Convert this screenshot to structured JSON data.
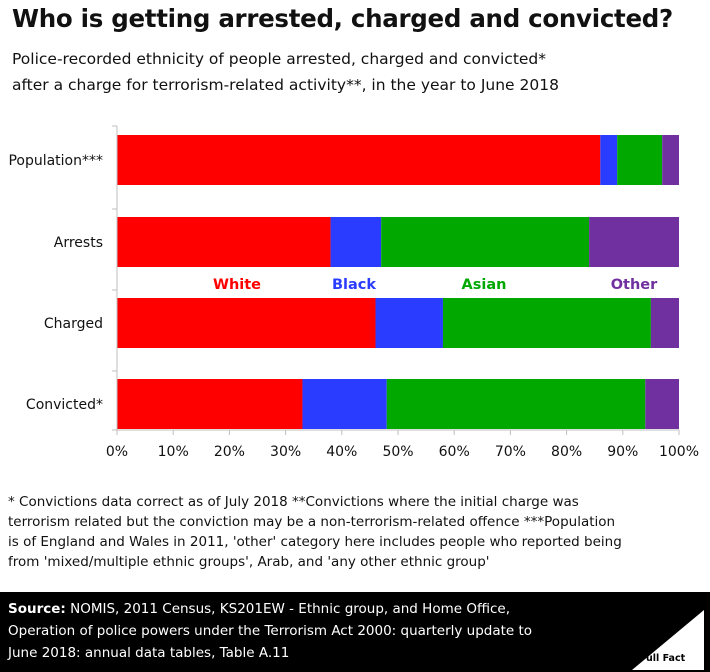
{
  "header": {
    "title": "Who is getting arrested, charged and convicted?",
    "subtitle_line1": "Police-recorded ethnicity of people arrested, charged and convicted*",
    "subtitle_line2": "after a charge for terrorism-related activity**, in the year to June 2018"
  },
  "chart_data": {
    "type": "bar",
    "orientation": "horizontal",
    "stacked": "percent",
    "categories": [
      "Population***",
      "Arrests",
      "Charged",
      "Convicted*"
    ],
    "series": [
      {
        "name": "White",
        "color": "#ff0000",
        "values": [
          86,
          38,
          46,
          33
        ]
      },
      {
        "name": "Black",
        "color": "#2a3cff",
        "values": [
          3,
          9,
          12,
          15
        ]
      },
      {
        "name": "Asian",
        "color": "#00a800",
        "values": [
          8,
          37,
          37,
          46
        ]
      },
      {
        "name": "Other",
        "color": "#7030a0",
        "values": [
          3,
          16,
          5,
          6
        ]
      }
    ],
    "x_ticks": [
      "0%",
      "10%",
      "20%",
      "30%",
      "40%",
      "50%",
      "60%",
      "70%",
      "80%",
      "90%",
      "100%"
    ],
    "xlim": [
      0,
      100
    ],
    "grid": false,
    "legend": "inline-middle"
  },
  "footnote": {
    "line1": "* Convictions data correct as of July 2018 **Convictions where the initial charge was",
    "line2": "terrorism related but the conviction may be a non-terrorism-related offence ***Population",
    "line3": "is of England and Wales in 2011, 'other' category here includes people who reported being",
    "line4": "from 'mixed/multiple ethnic groups', Arab, and 'any other ethnic group'"
  },
  "source": {
    "label": "Source:",
    "line1": " NOMIS, 2011 Census, KS201EW - Ethnic group, and Home Office,",
    "line2": "Operation of police powers under the Terrorism Act 2000: quarterly update to",
    "line3": "June 2018: annual data tables, Table A.11"
  },
  "logo": {
    "text": "Full Fact",
    "icon": "full-fact-logo-icon"
  }
}
